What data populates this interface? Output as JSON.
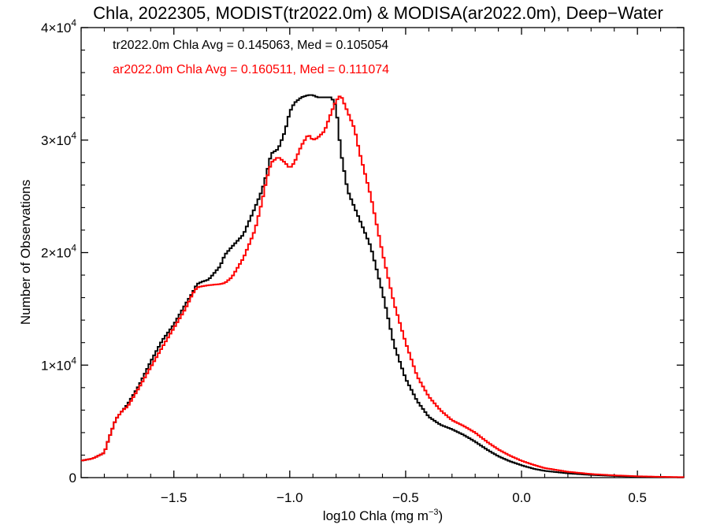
{
  "chart_data": {
    "type": "line",
    "title": "Chla, 2022305, MODIST(tr2022.0m) & MODISA(ar2022.0m), Deep−Water",
    "xlabel_main": "log10 Chla (mg m",
    "xlabel_sup": "−3",
    "xlabel_end": ")",
    "ylabel": "Number of Observations",
    "xlim": [
      -1.9,
      0.7
    ],
    "ylim": [
      0,
      40000
    ],
    "x_ticks": [
      {
        "value": -1.5,
        "label": "−1.5"
      },
      {
        "value": -1.0,
        "label": "−1.0"
      },
      {
        "value": -0.5,
        "label": "−0.5"
      },
      {
        "value": 0.0,
        "label": "0.0"
      },
      {
        "value": 0.5,
        "label": "0.5"
      }
    ],
    "y_ticks": [
      {
        "value": 0,
        "base": "0",
        "exp": ""
      },
      {
        "value": 10000,
        "base": "1×10",
        "exp": "4"
      },
      {
        "value": 20000,
        "base": "2×10",
        "exp": "4"
      },
      {
        "value": 30000,
        "base": "3×10",
        "exp": "4"
      },
      {
        "value": 40000,
        "base": "4×10",
        "exp": "4"
      }
    ],
    "annotations": [
      {
        "text": "tr2022.0m Chla Avg = 0.145063, Med = 0.105054",
        "color": "#000000"
      },
      {
        "text": "ar2022.0m Chla Avg = 0.160511, Med = 0.111074",
        "color": "#ff0000"
      }
    ],
    "series": [
      {
        "color": "#000000",
        "x": [
          -1.9,
          -1.85,
          -1.8,
          -1.78,
          -1.75,
          -1.72,
          -1.7,
          -1.65,
          -1.6,
          -1.55,
          -1.5,
          -1.45,
          -1.42,
          -1.4,
          -1.38,
          -1.35,
          -1.3,
          -1.28,
          -1.25,
          -1.2,
          -1.15,
          -1.12,
          -1.1,
          -1.08,
          -1.05,
          -1.02,
          -1.0,
          -0.98,
          -0.95,
          -0.92,
          -0.9,
          -0.88,
          -0.85,
          -0.82,
          -0.8,
          -0.78,
          -0.75,
          -0.72,
          -0.7,
          -0.65,
          -0.6,
          -0.55,
          -0.5,
          -0.45,
          -0.4,
          -0.35,
          -0.3,
          -0.25,
          -0.2,
          -0.15,
          -0.1,
          -0.05,
          0.0,
          0.05,
          0.1,
          0.2,
          0.3,
          0.4,
          0.5,
          0.6,
          0.7
        ],
        "y": [
          1500,
          1700,
          2200,
          3500,
          5200,
          6000,
          6500,
          8200,
          10300,
          12200,
          13600,
          15400,
          16400,
          17200,
          17400,
          17600,
          18800,
          19800,
          20500,
          21600,
          24000,
          25500,
          27000,
          28800,
          29200,
          30800,
          32500,
          33300,
          33800,
          34000,
          34000,
          33800,
          33800,
          33800,
          33000,
          29000,
          25500,
          24000,
          23000,
          20500,
          16500,
          11800,
          8800,
          6800,
          5400,
          4700,
          4300,
          3800,
          3200,
          2500,
          1900,
          1450,
          1100,
          800,
          600,
          380,
          240,
          150,
          90,
          50,
          30
        ]
      },
      {
        "color": "#ff0000",
        "x": [
          -1.9,
          -1.85,
          -1.8,
          -1.78,
          -1.75,
          -1.72,
          -1.7,
          -1.65,
          -1.6,
          -1.55,
          -1.5,
          -1.45,
          -1.42,
          -1.4,
          -1.38,
          -1.35,
          -1.3,
          -1.28,
          -1.25,
          -1.2,
          -1.15,
          -1.12,
          -1.1,
          -1.08,
          -1.05,
          -1.02,
          -1.0,
          -0.98,
          -0.95,
          -0.92,
          -0.9,
          -0.88,
          -0.85,
          -0.82,
          -0.8,
          -0.78,
          -0.76,
          -0.74,
          -0.72,
          -0.7,
          -0.65,
          -0.6,
          -0.55,
          -0.5,
          -0.45,
          -0.4,
          -0.35,
          -0.3,
          -0.25,
          -0.2,
          -0.15,
          -0.1,
          -0.05,
          0.0,
          0.05,
          0.1,
          0.2,
          0.3,
          0.4,
          0.5,
          0.6,
          0.7
        ],
        "y": [
          1500,
          1700,
          2200,
          3500,
          5200,
          6000,
          6300,
          8000,
          9800,
          11600,
          13300,
          15000,
          16300,
          16900,
          17000,
          17100,
          17200,
          17300,
          17800,
          19500,
          22000,
          24500,
          26500,
          28000,
          28500,
          28000,
          27500,
          28000,
          29500,
          30500,
          30000,
          30200,
          30800,
          32500,
          33500,
          34000,
          33000,
          32000,
          31000,
          29000,
          25000,
          20000,
          15500,
          12000,
          9000,
          7200,
          6000,
          5100,
          4600,
          4000,
          3200,
          2500,
          1950,
          1500,
          1150,
          850,
          520,
          320,
          200,
          120,
          70,
          40
        ]
      }
    ]
  }
}
